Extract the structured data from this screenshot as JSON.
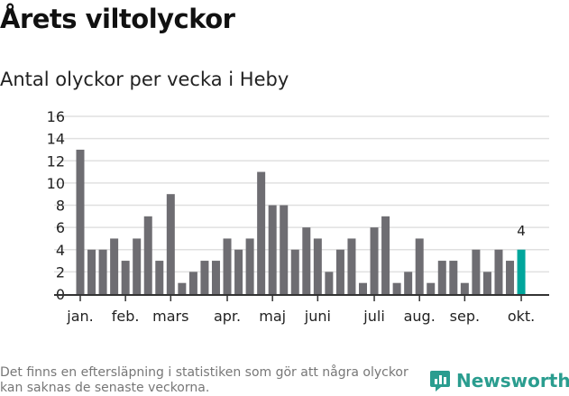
{
  "title": "Årets viltolyckor",
  "subtitle": "Antal olyckor per vecka i Heby",
  "footnote": "Det finns en eftersläpning i statistiken som gör att några olyckor kan saknas de senaste veckorna.",
  "logo": "Newsworthy",
  "colors": {
    "bar": "#6e6d72",
    "highlight": "#00a69c",
    "grid": "#e0e0e0",
    "axis": "#333333"
  },
  "chart_data": {
    "type": "bar",
    "title": "Antal olyckor per vecka i Heby",
    "xlabel": "",
    "ylabel": "",
    "ylim": [
      0,
      16
    ],
    "yticks": [
      0,
      2,
      4,
      6,
      8,
      10,
      12,
      14,
      16
    ],
    "values": [
      13,
      4,
      4,
      5,
      3,
      5,
      7,
      3,
      9,
      1,
      2,
      3,
      3,
      5,
      4,
      5,
      11,
      8,
      8,
      4,
      6,
      5,
      2,
      4,
      5,
      1,
      6,
      7,
      1,
      2,
      5,
      1,
      3,
      3,
      1,
      4,
      2,
      4,
      3,
      4
    ],
    "month_ticks": [
      {
        "label": "jan.",
        "index": 0
      },
      {
        "label": "feb.",
        "index": 4
      },
      {
        "label": "mars",
        "index": 8
      },
      {
        "label": "apr.",
        "index": 13
      },
      {
        "label": "maj",
        "index": 17
      },
      {
        "label": "juni",
        "index": 21
      },
      {
        "label": "juli",
        "index": 26
      },
      {
        "label": "aug.",
        "index": 30
      },
      {
        "label": "sep.",
        "index": 34
      },
      {
        "label": "okt.",
        "index": 39
      }
    ],
    "highlight_label": "4",
    "grid": true
  }
}
